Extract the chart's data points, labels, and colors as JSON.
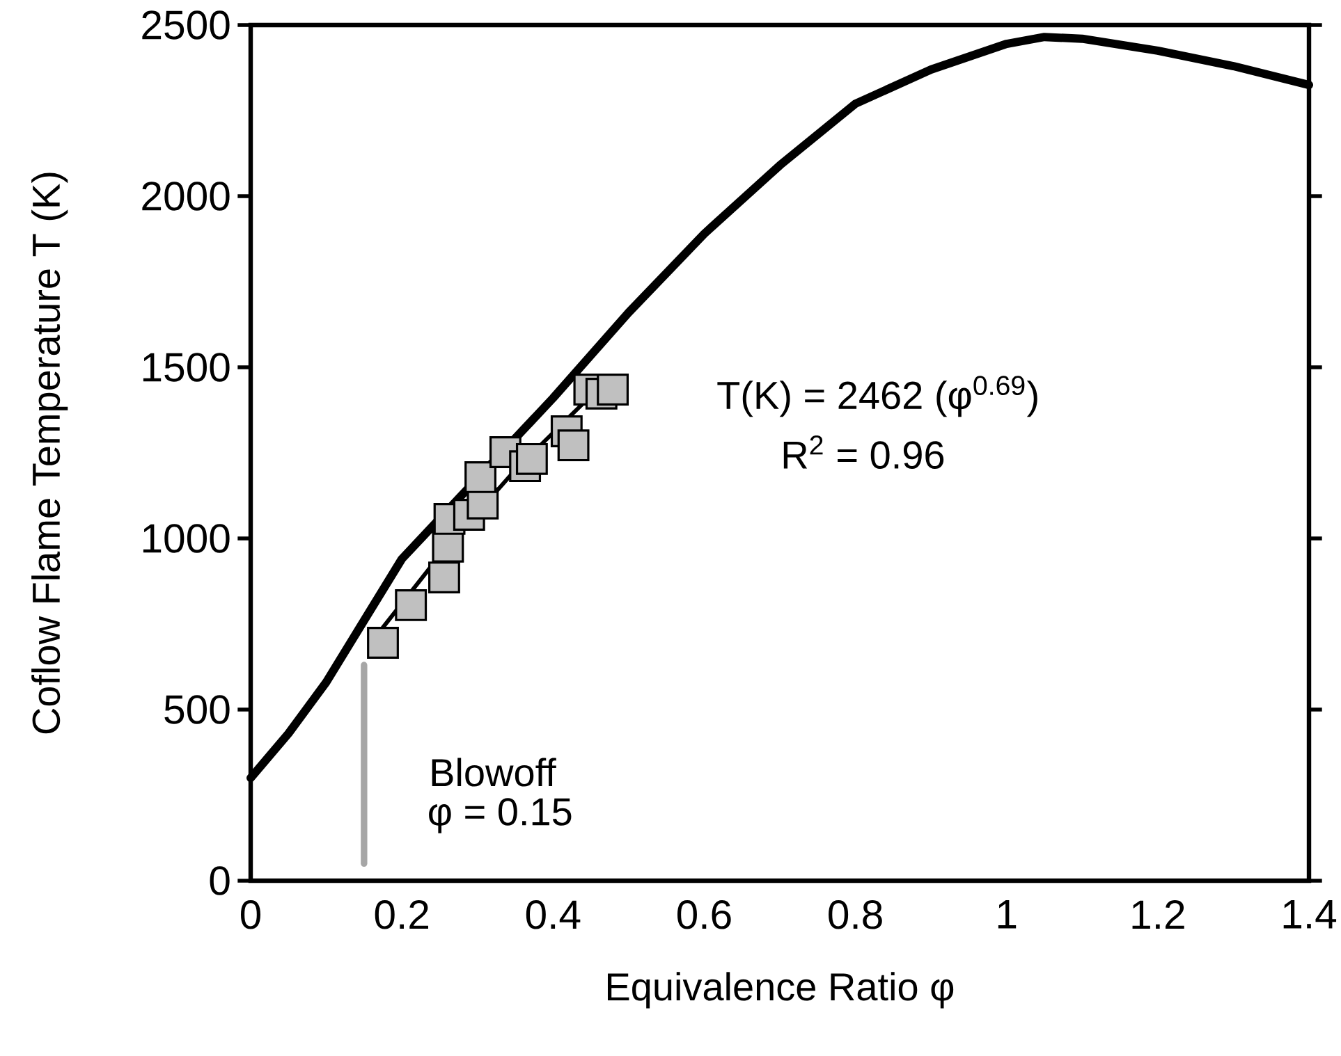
{
  "chart_data": {
    "type": "line",
    "xlabel": "Equivalence Ratio φ",
    "ylabel": "Coflow Flame Temperature T (K)",
    "xlim": [
      0,
      1.4
    ],
    "xticks": [
      0,
      0.2,
      0.4,
      0.6,
      0.8,
      1,
      1.2,
      1.4
    ],
    "ylim": [
      0,
      2500
    ],
    "yticks": [
      0,
      500,
      1000,
      1500,
      2000,
      2500
    ],
    "series": [
      {
        "type": "scatter",
        "marker": "square",
        "color": "#c0c0c0",
        "x": [
          0.175,
          0.212,
          0.256,
          0.261,
          0.263,
          0.289,
          0.307,
          0.304,
          0.337,
          0.363,
          0.372,
          0.418,
          0.427,
          0.448,
          0.464,
          0.479
        ],
        "values": [
          695,
          805,
          886,
          976,
          1057,
          1069,
          1102,
          1179,
          1252,
          1211,
          1232,
          1313,
          1272,
          1435,
          1423,
          1435
        ]
      },
      {
        "color": "#000000",
        "x": [
          0,
          0.05,
          0.1,
          0.15,
          0.2,
          0.4,
          0.5,
          0.6,
          0.7,
          0.8,
          0.9,
          1.0,
          1.05,
          1.1,
          1.2,
          1.3,
          1.4
        ],
        "values": [
          300,
          430,
          580,
          760,
          940,
          1410,
          1660,
          1890,
          2090,
          2270,
          2370,
          2445,
          2465,
          2460,
          2425,
          2380,
          2325
        ]
      },
      {
        "color": "#a6a6a6",
        "x": [
          0.15,
          0.15
        ],
        "values": [
          50,
          630
        ]
      },
      {
        "color": "#000000",
        "x": [
          0.175,
          0.25,
          0.35,
          0.47
        ],
        "values": [
          740,
          950,
          1200,
          1460
        ]
      }
    ],
    "annotations": [
      "T(K) = 2462 (φ$^{0.69}$)",
      "R$^{2}$ = 0.96",
      "Blowoff",
      "φ = 0.15"
    ]
  }
}
